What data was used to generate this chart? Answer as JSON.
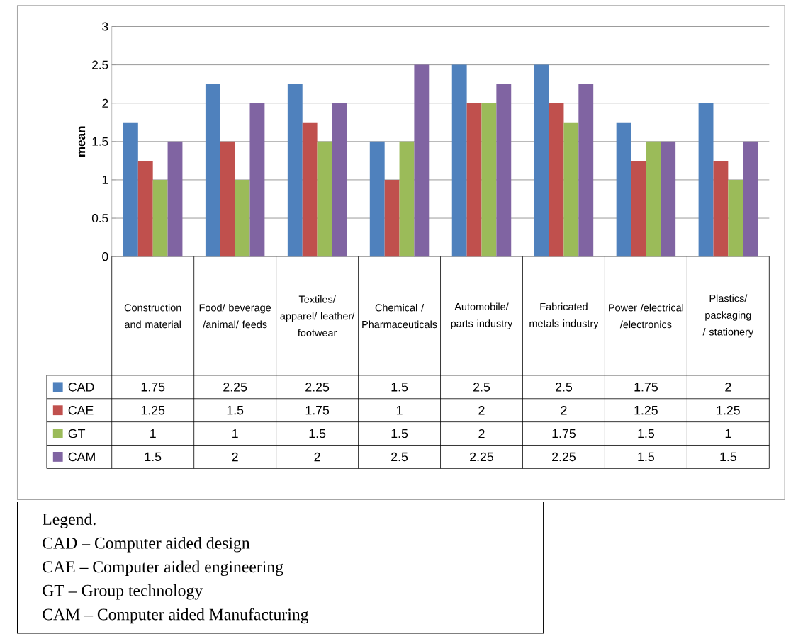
{
  "chart_data": {
    "type": "bar",
    "categories": [
      "Construction and material",
      "Food/ beverage /animal/ feeds",
      "Textiles/ apparel/ leather/ footwear",
      "Chemical / Pharmaceuticals",
      "Automobile/ parts industry",
      "Fabricated metals industry",
      "Power /electrical /electronics",
      "Plastics/ packaging / stationery"
    ],
    "series": [
      {
        "name": "CAD",
        "color": "#4f81bd",
        "values": [
          1.75,
          2.25,
          2.25,
          1.5,
          2.5,
          2.5,
          1.75,
          2
        ]
      },
      {
        "name": "CAE",
        "color": "#c0504d",
        "values": [
          1.25,
          1.5,
          1.75,
          1,
          2,
          2,
          1.25,
          1.25
        ]
      },
      {
        "name": "GT",
        "color": "#9bbb59",
        "values": [
          1,
          1,
          1.5,
          1.5,
          2,
          1.75,
          1.5,
          1
        ]
      },
      {
        "name": "CAM",
        "color": "#8064a2",
        "values": [
          1.5,
          2,
          2,
          2.5,
          2.25,
          2.25,
          1.5,
          1.5
        ]
      }
    ],
    "ylabel": "mean",
    "ylim": [
      0,
      3
    ],
    "yticks": [
      0,
      0.5,
      1,
      1.5,
      2,
      2.5,
      3
    ],
    "grid": "y",
    "legend": "bottom",
    "data_labels": true,
    "annotations": [
      "Legend.",
      "CAD – Computer aided design",
      "CAE – Computer aided engineering",
      "GT – Group technology",
      "CAM – Computer aided Manufacturing"
    ]
  }
}
